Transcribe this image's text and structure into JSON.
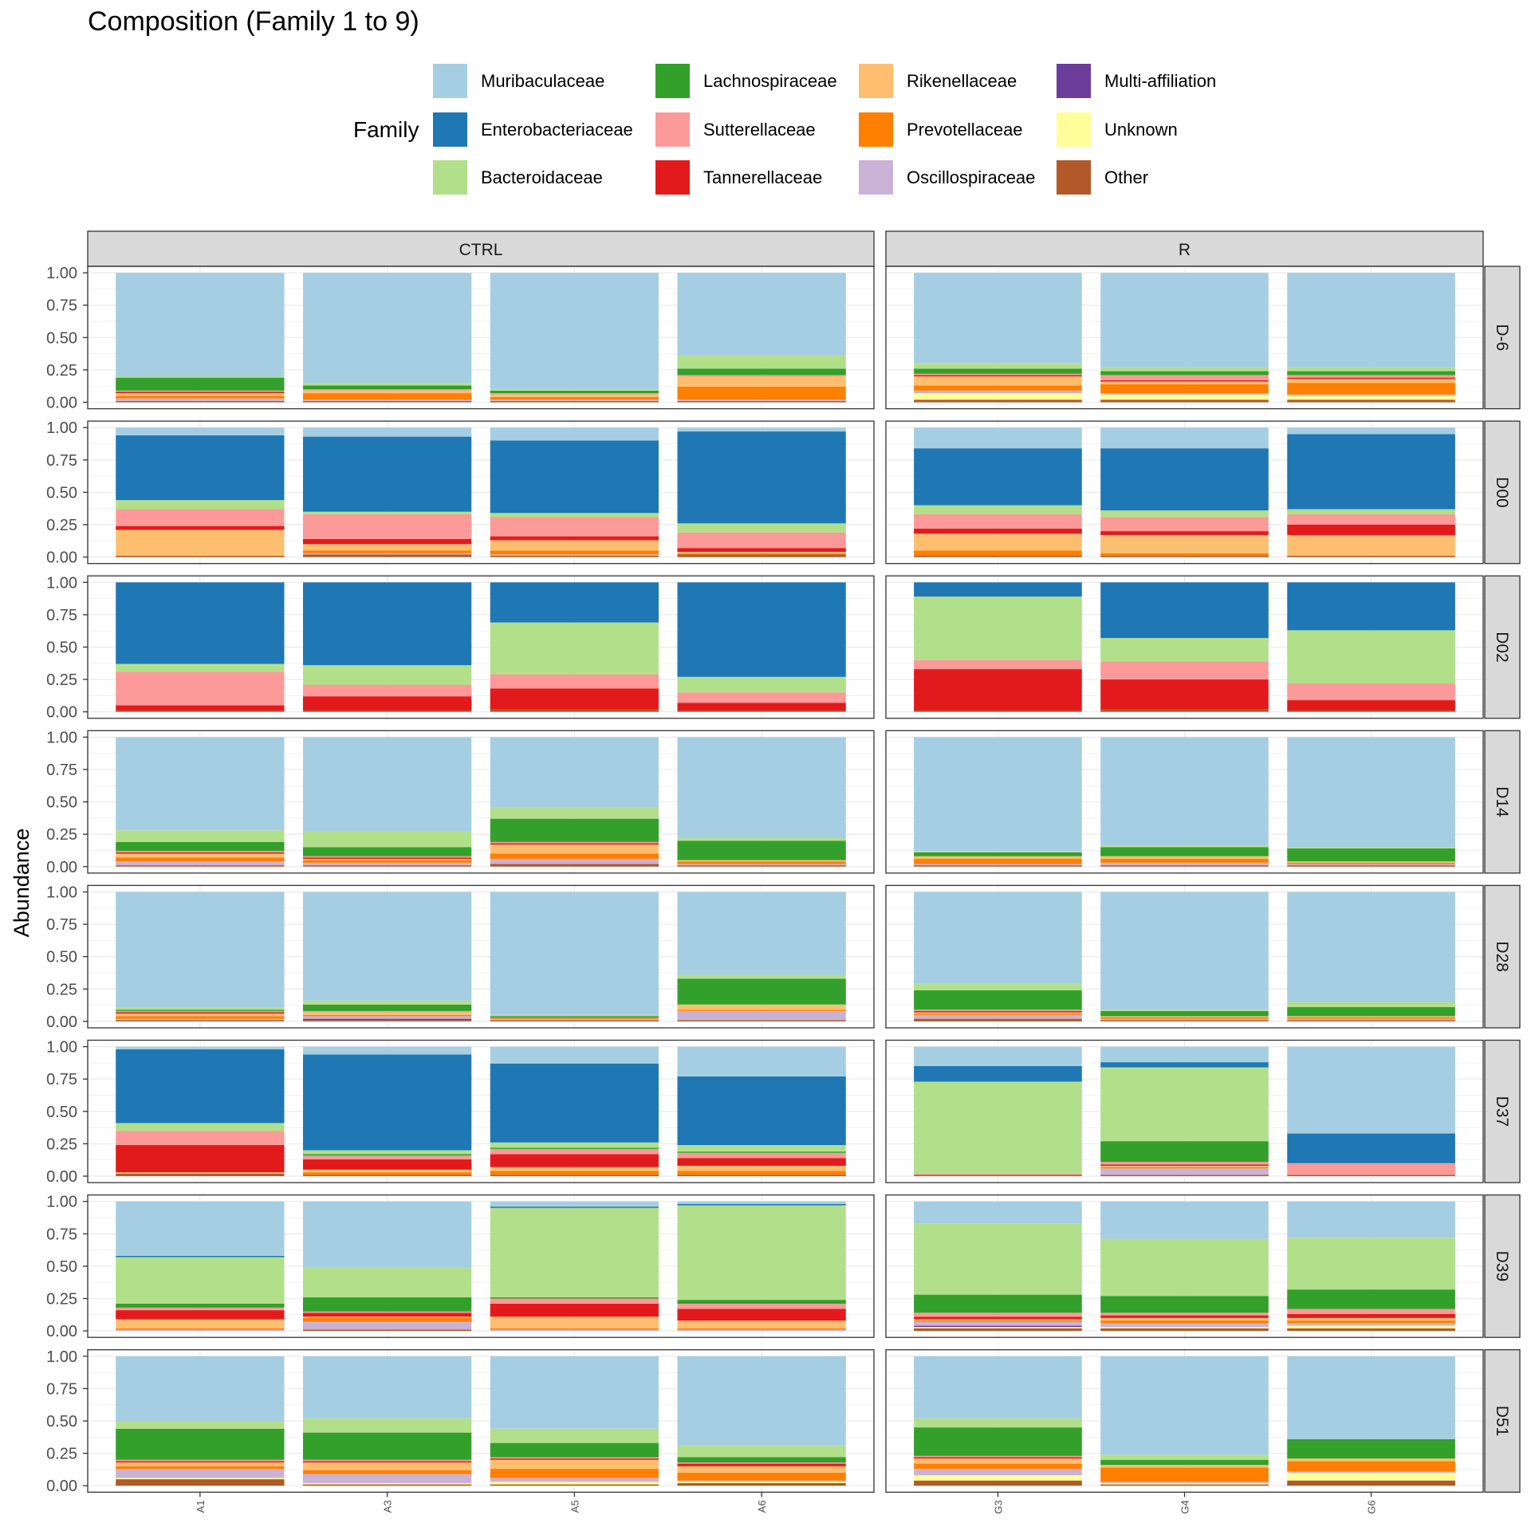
{
  "chart_data": {
    "type": "bar",
    "title": "Composition (Family 1 to 9)",
    "ylabel": "Abundance",
    "xlabel": "",
    "ylim": [
      0,
      1
    ],
    "yticks": [
      "0.00",
      "0.25",
      "0.50",
      "0.75",
      "1.00"
    ],
    "legend": {
      "title": "Family",
      "position": "top",
      "entries": [
        {
          "name": "Muribaculaceae",
          "color": "#a6cee3"
        },
        {
          "name": "Enterobacteriaceae",
          "color": "#1f78b4"
        },
        {
          "name": "Bacteroidaceae",
          "color": "#b2df8a"
        },
        {
          "name": "Lachnospiraceae",
          "color": "#33a02c"
        },
        {
          "name": "Sutterellaceae",
          "color": "#fb9a99"
        },
        {
          "name": "Tannerellaceae",
          "color": "#e31a1c"
        },
        {
          "name": "Rikenellaceae",
          "color": "#fdbf6f"
        },
        {
          "name": "Prevotellaceae",
          "color": "#ff7f00"
        },
        {
          "name": "Oscillospiraceae",
          "color": "#cab2d6"
        },
        {
          "name": "Multi-affiliation",
          "color": "#6a3d9a"
        },
        {
          "name": "Unknown",
          "color": "#ffff99"
        },
        {
          "name": "Other",
          "color": "#b15928"
        }
      ]
    },
    "facet_cols": [
      {
        "label": "CTRL",
        "samples": [
          "A1",
          "A3",
          "A5",
          "A6"
        ]
      },
      {
        "label": "R",
        "samples": [
          "G3",
          "G4",
          "G6"
        ]
      }
    ],
    "facet_rows": [
      "D-6",
      "D00",
      "D02",
      "D14",
      "D28",
      "D37",
      "D39",
      "D51"
    ],
    "stack_order_bottom_to_top": [
      "Other",
      "Unknown",
      "Multi-affiliation",
      "Oscillospiraceae",
      "Prevotellaceae",
      "Rikenellaceae",
      "Tannerellaceae",
      "Sutterellaceae",
      "Lachnospiraceae",
      "Bacteroidaceae",
      "Enterobacteriaceae",
      "Muribaculaceae"
    ],
    "values": {
      "D-6": {
        "A1": [
          0.01,
          0,
          0,
          0.02,
          0.02,
          0.02,
          0.01,
          0.01,
          0.1,
          0.01,
          0,
          0.8
        ],
        "A3": [
          0.01,
          0,
          0,
          0.01,
          0.05,
          0.02,
          0,
          0.01,
          0.03,
          0.02,
          0,
          0.85
        ],
        "A5": [
          0.01,
          0,
          0,
          0.01,
          0.02,
          0.02,
          0,
          0.01,
          0.02,
          0.01,
          0,
          0.9
        ],
        "A6": [
          0.01,
          0,
          0,
          0.01,
          0.1,
          0.08,
          0,
          0.01,
          0.05,
          0.1,
          0,
          0.64
        ],
        "G3": [
          0.02,
          0.05,
          0,
          0.02,
          0.04,
          0.07,
          0.01,
          0.01,
          0.04,
          0.04,
          0,
          0.7
        ],
        "G4": [
          0.02,
          0.04,
          0,
          0.01,
          0.07,
          0.02,
          0.01,
          0.04,
          0.03,
          0.03,
          0,
          0.73
        ],
        "G6": [
          0.02,
          0.03,
          0,
          0.01,
          0.09,
          0.03,
          0.01,
          0.02,
          0.03,
          0.03,
          0,
          0.73
        ]
      },
      "D00": {
        "A1": [
          0.01,
          0,
          0,
          0,
          0,
          0.2,
          0.03,
          0.13,
          0,
          0.07,
          0.5,
          0.06
        ],
        "A3": [
          0.02,
          0,
          0,
          0.01,
          0.02,
          0.05,
          0.04,
          0.19,
          0,
          0.02,
          0.58,
          0.07
        ],
        "A5": [
          0.01,
          0,
          0,
          0.01,
          0.03,
          0.08,
          0.03,
          0.15,
          0,
          0.03,
          0.56,
          0.1
        ],
        "A6": [
          0.02,
          0,
          0,
          0,
          0.01,
          0.01,
          0.03,
          0.12,
          0,
          0.07,
          0.71,
          0.03
        ],
        "G3": [
          0.01,
          0,
          0,
          0,
          0.04,
          0.13,
          0.04,
          0.11,
          0,
          0.07,
          0.44,
          0.16
        ],
        "G4": [
          0.01,
          0,
          0,
          0,
          0.02,
          0.14,
          0.03,
          0.11,
          0,
          0.05,
          0.48,
          0.16
        ],
        "G6": [
          0.01,
          0,
          0,
          0,
          0,
          0.16,
          0.08,
          0.08,
          0,
          0.04,
          0.58,
          0.05
        ]
      },
      "D02": {
        "A1": [
          0.01,
          0,
          0,
          0,
          0,
          0,
          0.04,
          0.26,
          0,
          0.06,
          0.63,
          0
        ],
        "A3": [
          0.01,
          0,
          0,
          0,
          0,
          0,
          0.11,
          0.09,
          0,
          0.15,
          0.64,
          0
        ],
        "A5": [
          0.02,
          0,
          0,
          0,
          0,
          0,
          0.16,
          0.11,
          0,
          0.4,
          0.31,
          0
        ],
        "A6": [
          0.01,
          0,
          0,
          0,
          0,
          0,
          0.06,
          0.08,
          0,
          0.12,
          0.73,
          0
        ],
        "G3": [
          0.01,
          0,
          0,
          0,
          0,
          0,
          0.32,
          0.07,
          0,
          0.49,
          0.11,
          0
        ],
        "G4": [
          0.02,
          0,
          0,
          0,
          0,
          0,
          0.23,
          0.14,
          0,
          0.18,
          0.43,
          0
        ],
        "G6": [
          0.01,
          0,
          0,
          0,
          0,
          0,
          0.08,
          0.13,
          0,
          0.41,
          0.37,
          0
        ]
      },
      "D14": {
        "A1": [
          0.01,
          0,
          0,
          0.03,
          0.03,
          0.03,
          0.01,
          0.01,
          0.07,
          0.09,
          0,
          0.72
        ],
        "A3": [
          0.01,
          0,
          0,
          0.02,
          0.02,
          0.01,
          0.01,
          0.01,
          0.07,
          0.12,
          0,
          0.73
        ],
        "A5": [
          0.02,
          0,
          0,
          0.04,
          0.04,
          0.07,
          0.01,
          0.01,
          0.18,
          0.09,
          0,
          0.54
        ],
        "A6": [
          0.01,
          0,
          0,
          0.01,
          0.02,
          0.01,
          0,
          0,
          0.15,
          0.02,
          0,
          0.78
        ],
        "G3": [
          0.01,
          0,
          0,
          0.01,
          0.04,
          0.02,
          0,
          0,
          0.03,
          0.01,
          0,
          0.88
        ],
        "G4": [
          0.01,
          0,
          0,
          0.02,
          0.03,
          0.02,
          0,
          0,
          0.07,
          0.01,
          0,
          0.84
        ],
        "G6": [
          0.01,
          0,
          0,
          0.01,
          0.01,
          0.01,
          0,
          0,
          0.1,
          0.01,
          0,
          0.85
        ]
      },
      "D28": {
        "A1": [
          0.01,
          0,
          0,
          0.01,
          0.02,
          0.02,
          0.01,
          0.01,
          0.01,
          0.02,
          0,
          0.89
        ],
        "A3": [
          0.01,
          0,
          0.01,
          0.02,
          0.01,
          0.02,
          0,
          0.01,
          0.05,
          0.03,
          0,
          0.84
        ],
        "A5": [
          0.01,
          0,
          0,
          0.01,
          0.01,
          0,
          0,
          0,
          0.01,
          0.01,
          0,
          0.95
        ],
        "A6": [
          0.01,
          0,
          0,
          0.07,
          0.01,
          0.04,
          0,
          0,
          0.2,
          0.03,
          0,
          0.64
        ],
        "G3": [
          0.02,
          0,
          0,
          0.03,
          0.01,
          0.01,
          0.01,
          0.01,
          0.15,
          0.05,
          0,
          0.71
        ],
        "G4": [
          0.01,
          0,
          0,
          0.01,
          0.01,
          0.01,
          0,
          0,
          0.04,
          0.01,
          0,
          0.91
        ],
        "G6": [
          0.01,
          0,
          0,
          0.01,
          0.01,
          0.01,
          0,
          0,
          0.07,
          0.04,
          0,
          0.85
        ]
      },
      "D37": {
        "A1": [
          0.02,
          0,
          0,
          0,
          0,
          0.01,
          0.21,
          0.11,
          0,
          0.06,
          0.57,
          0.02
        ],
        "A3": [
          0.01,
          0,
          0,
          0,
          0.02,
          0.02,
          0.08,
          0.03,
          0.01,
          0.03,
          0.74,
          0.06
        ],
        "A5": [
          0.01,
          0,
          0,
          0,
          0.03,
          0.03,
          0.1,
          0.04,
          0.01,
          0.04,
          0.61,
          0.13
        ],
        "A6": [
          0.01,
          0,
          0,
          0,
          0.03,
          0.04,
          0.06,
          0.04,
          0.01,
          0.05,
          0.53,
          0.23
        ],
        "G3": [
          0.01,
          0,
          0,
          0,
          0,
          0,
          0,
          0.01,
          0,
          0.71,
          0.12,
          0.15
        ],
        "G4": [
          0.01,
          0,
          0,
          0.05,
          0.01,
          0.01,
          0.01,
          0.02,
          0.16,
          0.57,
          0.04,
          0.12
        ],
        "G6": [
          0.01,
          0,
          0,
          0,
          0,
          0,
          0,
          0.09,
          0,
          0,
          0.23,
          0.67
        ]
      },
      "D39": {
        "A1": [
          0,
          0,
          0,
          0.01,
          0.01,
          0.07,
          0.07,
          0.02,
          0.03,
          0.36,
          0.01,
          0.42
        ],
        "A3": [
          0.01,
          0,
          0,
          0.06,
          0.03,
          0.01,
          0.03,
          0.01,
          0.11,
          0.23,
          0,
          0.51
        ],
        "A5": [
          0,
          0,
          0,
          0.01,
          0.01,
          0.09,
          0.1,
          0.04,
          0.01,
          0.69,
          0.01,
          0.04
        ],
        "A6": [
          0,
          0,
          0,
          0.01,
          0.01,
          0.06,
          0.09,
          0.04,
          0.03,
          0.73,
          0.01,
          0.02
        ],
        "G3": [
          0.02,
          0.01,
          0.01,
          0.03,
          0.01,
          0.01,
          0.02,
          0.03,
          0.14,
          0.55,
          0,
          0.17
        ],
        "G4": [
          0.02,
          0.01,
          0,
          0.03,
          0.02,
          0.02,
          0.02,
          0.02,
          0.13,
          0.44,
          0,
          0.29
        ],
        "G6": [
          0.02,
          0.02,
          0,
          0.02,
          0.02,
          0.02,
          0.03,
          0.04,
          0.15,
          0.4,
          0,
          0.28
        ]
      },
      "D51": {
        "A1": [
          0.05,
          0.01,
          0,
          0.07,
          0.02,
          0.03,
          0.01,
          0.01,
          0.24,
          0.06,
          0,
          0.5
        ],
        "A3": [
          0.01,
          0.01,
          0,
          0.07,
          0.03,
          0.06,
          0.01,
          0.01,
          0.21,
          0.11,
          0,
          0.48
        ],
        "A5": [
          0.01,
          0.02,
          0,
          0.03,
          0.07,
          0.07,
          0.01,
          0.01,
          0.11,
          0.11,
          0,
          0.56
        ],
        "A6": [
          0.02,
          0.01,
          0,
          0.01,
          0.06,
          0.05,
          0.02,
          0.01,
          0.04,
          0.09,
          0,
          0.69
        ],
        "G3": [
          0.04,
          0.04,
          0,
          0.05,
          0.04,
          0.04,
          0.01,
          0.01,
          0.22,
          0.07,
          0,
          0.48
        ],
        "G4": [
          0.01,
          0.01,
          0,
          0.01,
          0.11,
          0.02,
          0,
          0,
          0.04,
          0.04,
          0,
          0.76
        ],
        "G6": [
          0.04,
          0.06,
          0,
          0.01,
          0.08,
          0.02,
          0,
          0,
          0.15,
          0,
          0,
          0.64
        ]
      }
    }
  }
}
